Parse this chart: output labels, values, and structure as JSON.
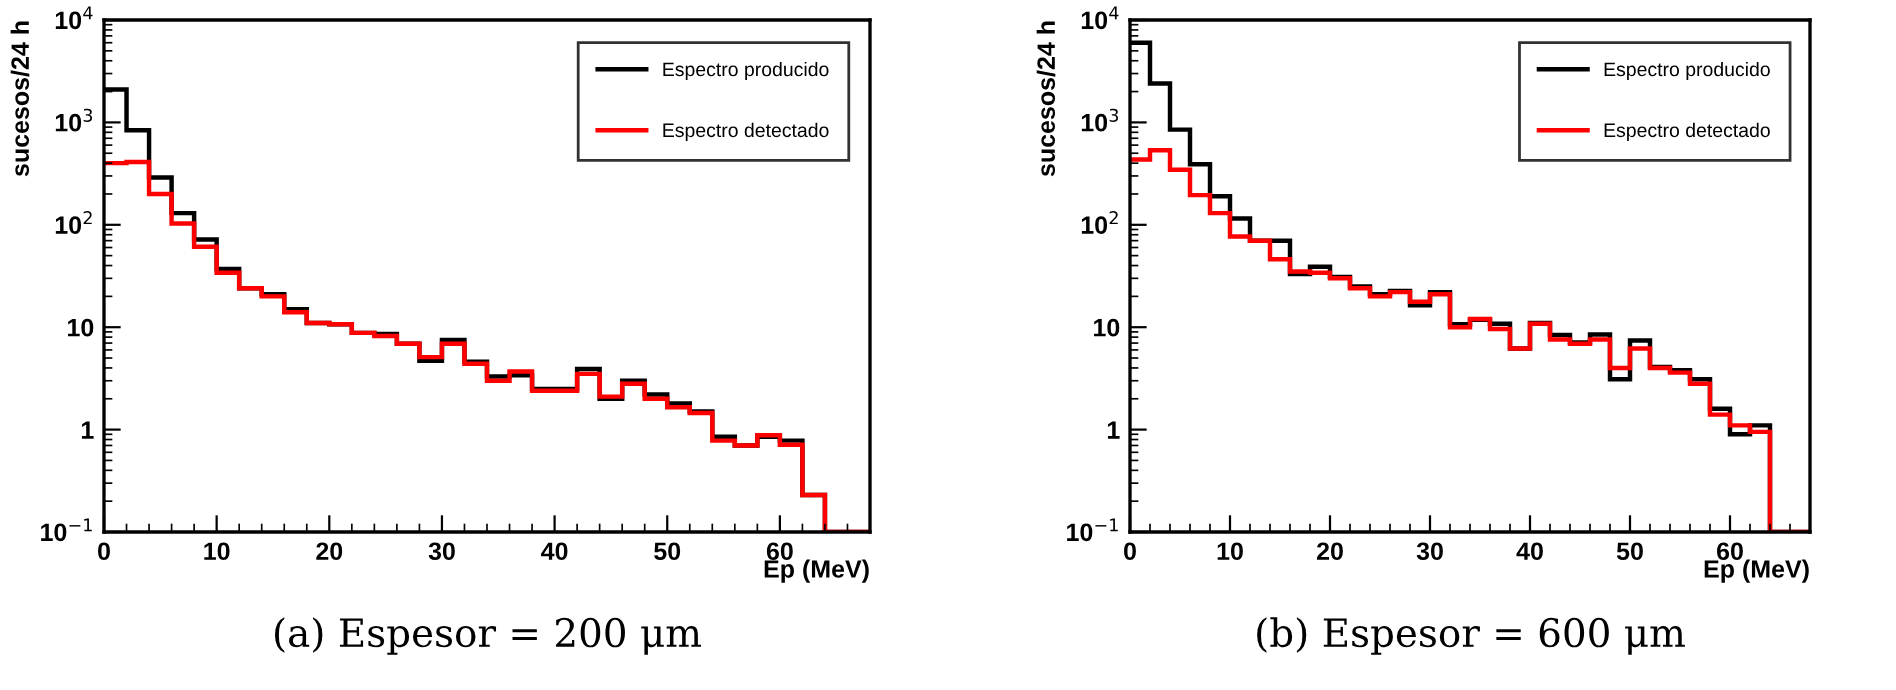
{
  "chart_data": [
    {
      "type": "histogram",
      "xlabel": "Ep (MeV)",
      "ylabel": "sucesos/24 h",
      "log": "y",
      "legend": "top right",
      "grid": false,
      "bins": [
        0,
        2,
        4,
        6,
        8,
        10,
        12,
        14,
        16,
        18,
        20,
        22,
        24,
        26,
        28,
        30,
        32,
        34,
        36,
        38,
        40,
        42,
        44,
        46,
        48,
        50,
        52,
        54,
        56,
        58,
        60,
        62,
        64,
        66,
        68
      ],
      "xlim": [
        0,
        68
      ],
      "xticks": [
        0,
        10,
        20,
        30,
        40,
        50,
        60
      ],
      "ylim": [
        0.1,
        10000
      ],
      "yticks": [
        {
          "value": 0.1,
          "label": "10$^{−1}$"
        },
        1,
        10,
        {
          "value": 100,
          "label": "10$^{2}$"
        },
        {
          "value": 1000,
          "label": "10$^{3}$"
        },
        {
          "value": 10000,
          "label": "10$^{4}$"
        }
      ],
      "series": [
        {
          "name": "Espectro producido",
          "color": "#000000",
          "values": [
            2100,
            840,
            290,
            130,
            72,
            37,
            24,
            21,
            15,
            11,
            10.7,
            8.8,
            8.6,
            6.9,
            4.7,
            7.5,
            4.6,
            3.3,
            3.4,
            2.5,
            2.5,
            3.9,
            2.0,
            3.0,
            2.2,
            1.8,
            1.5,
            0.85,
            0.7,
            0.85,
            0.78,
            0.23,
            0.1,
            0.1
          ]
        },
        {
          "name": "Espectro detectado",
          "color": "#ff0000",
          "values": [
            400,
            410,
            200,
            103,
            61,
            34,
            24,
            20,
            14,
            11,
            10.7,
            8.8,
            8.2,
            6.9,
            5.1,
            6.9,
            4.4,
            3.0,
            3.7,
            2.4,
            2.4,
            3.5,
            2.1,
            2.8,
            2.0,
            1.65,
            1.45,
            0.78,
            0.7,
            0.88,
            0.71,
            0.23,
            0.1,
            0.1
          ]
        }
      ],
      "annotations": [
        "(a) Espesor = 200 μm"
      ]
    },
    {
      "type": "histogram",
      "xlabel": "Ep (MeV)",
      "ylabel": "sucesos/24 h",
      "log": "y",
      "legend": "top right",
      "grid": false,
      "bins": [
        0,
        2,
        4,
        6,
        8,
        10,
        12,
        14,
        16,
        18,
        20,
        22,
        24,
        26,
        28,
        30,
        32,
        34,
        36,
        38,
        40,
        42,
        44,
        46,
        48,
        50,
        52,
        54,
        56,
        58,
        60,
        62,
        64,
        66,
        68
      ],
      "xlim": [
        0,
        68
      ],
      "xticks": [
        0,
        10,
        20,
        30,
        40,
        50,
        60
      ],
      "ylim": [
        0.1,
        10000
      ],
      "yticks": [
        {
          "value": 0.1,
          "label": "10$^{−1}$"
        },
        1,
        10,
        {
          "value": 100,
          "label": "10$^{2}$"
        },
        {
          "value": 1000,
          "label": "10$^{3}$"
        },
        {
          "value": 10000,
          "label": "10$^{4}$"
        }
      ],
      "series": [
        {
          "name": "Espectro producido",
          "color": "#000000",
          "values": [
            6000,
            2400,
            850,
            390,
            190,
            115,
            70,
            70,
            33,
            39,
            31,
            25,
            21,
            22.6,
            16.4,
            22,
            10.7,
            11.8,
            10.8,
            6.2,
            11,
            8.4,
            7.1,
            8.5,
            3.1,
            7.4,
            4.1,
            3.8,
            3.1,
            1.6,
            0.9,
            1.1,
            0.1,
            0.1
          ]
        },
        {
          "name": "Espectro detectado",
          "color": "#ff0000",
          "values": [
            435,
            535,
            345,
            195,
            130,
            77,
            70,
            46,
            35,
            34,
            30,
            24,
            20,
            22,
            17.7,
            21,
            10,
            12,
            9.6,
            6.2,
            10.8,
            7.6,
            6.9,
            7.6,
            4.0,
            6.2,
            4.0,
            3.6,
            2.8,
            1.4,
            1.1,
            0.95,
            0.1,
            0.1
          ]
        }
      ],
      "annotations": [
        "(b) Espesor = 600 μm"
      ]
    }
  ]
}
